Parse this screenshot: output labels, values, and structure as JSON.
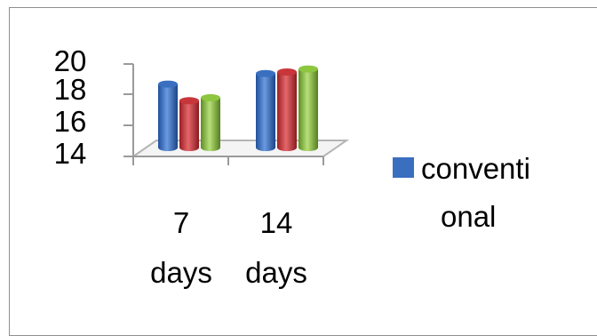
{
  "chart_data": {
    "type": "bar",
    "style": "3d-cylinder",
    "categories": [
      [
        "7",
        "days"
      ],
      [
        "14",
        "days"
      ]
    ],
    "series": [
      {
        "name": "conventional",
        "values": [
          18.2,
          18.9
        ],
        "color": "#3a6fc0"
      },
      {
        "values": [
          17.1,
          19.0
        ],
        "color": "#c8353a"
      },
      {
        "values": [
          17.3,
          19.2
        ],
        "color": "#8dc63f"
      }
    ],
    "y_ticks": [
      "20",
      "18",
      "16",
      "14"
    ],
    "ylim": [
      14,
      20
    ],
    "legend": {
      "placement": "right",
      "labels": [
        "conventi",
        "onal"
      ]
    },
    "grid": false
  }
}
